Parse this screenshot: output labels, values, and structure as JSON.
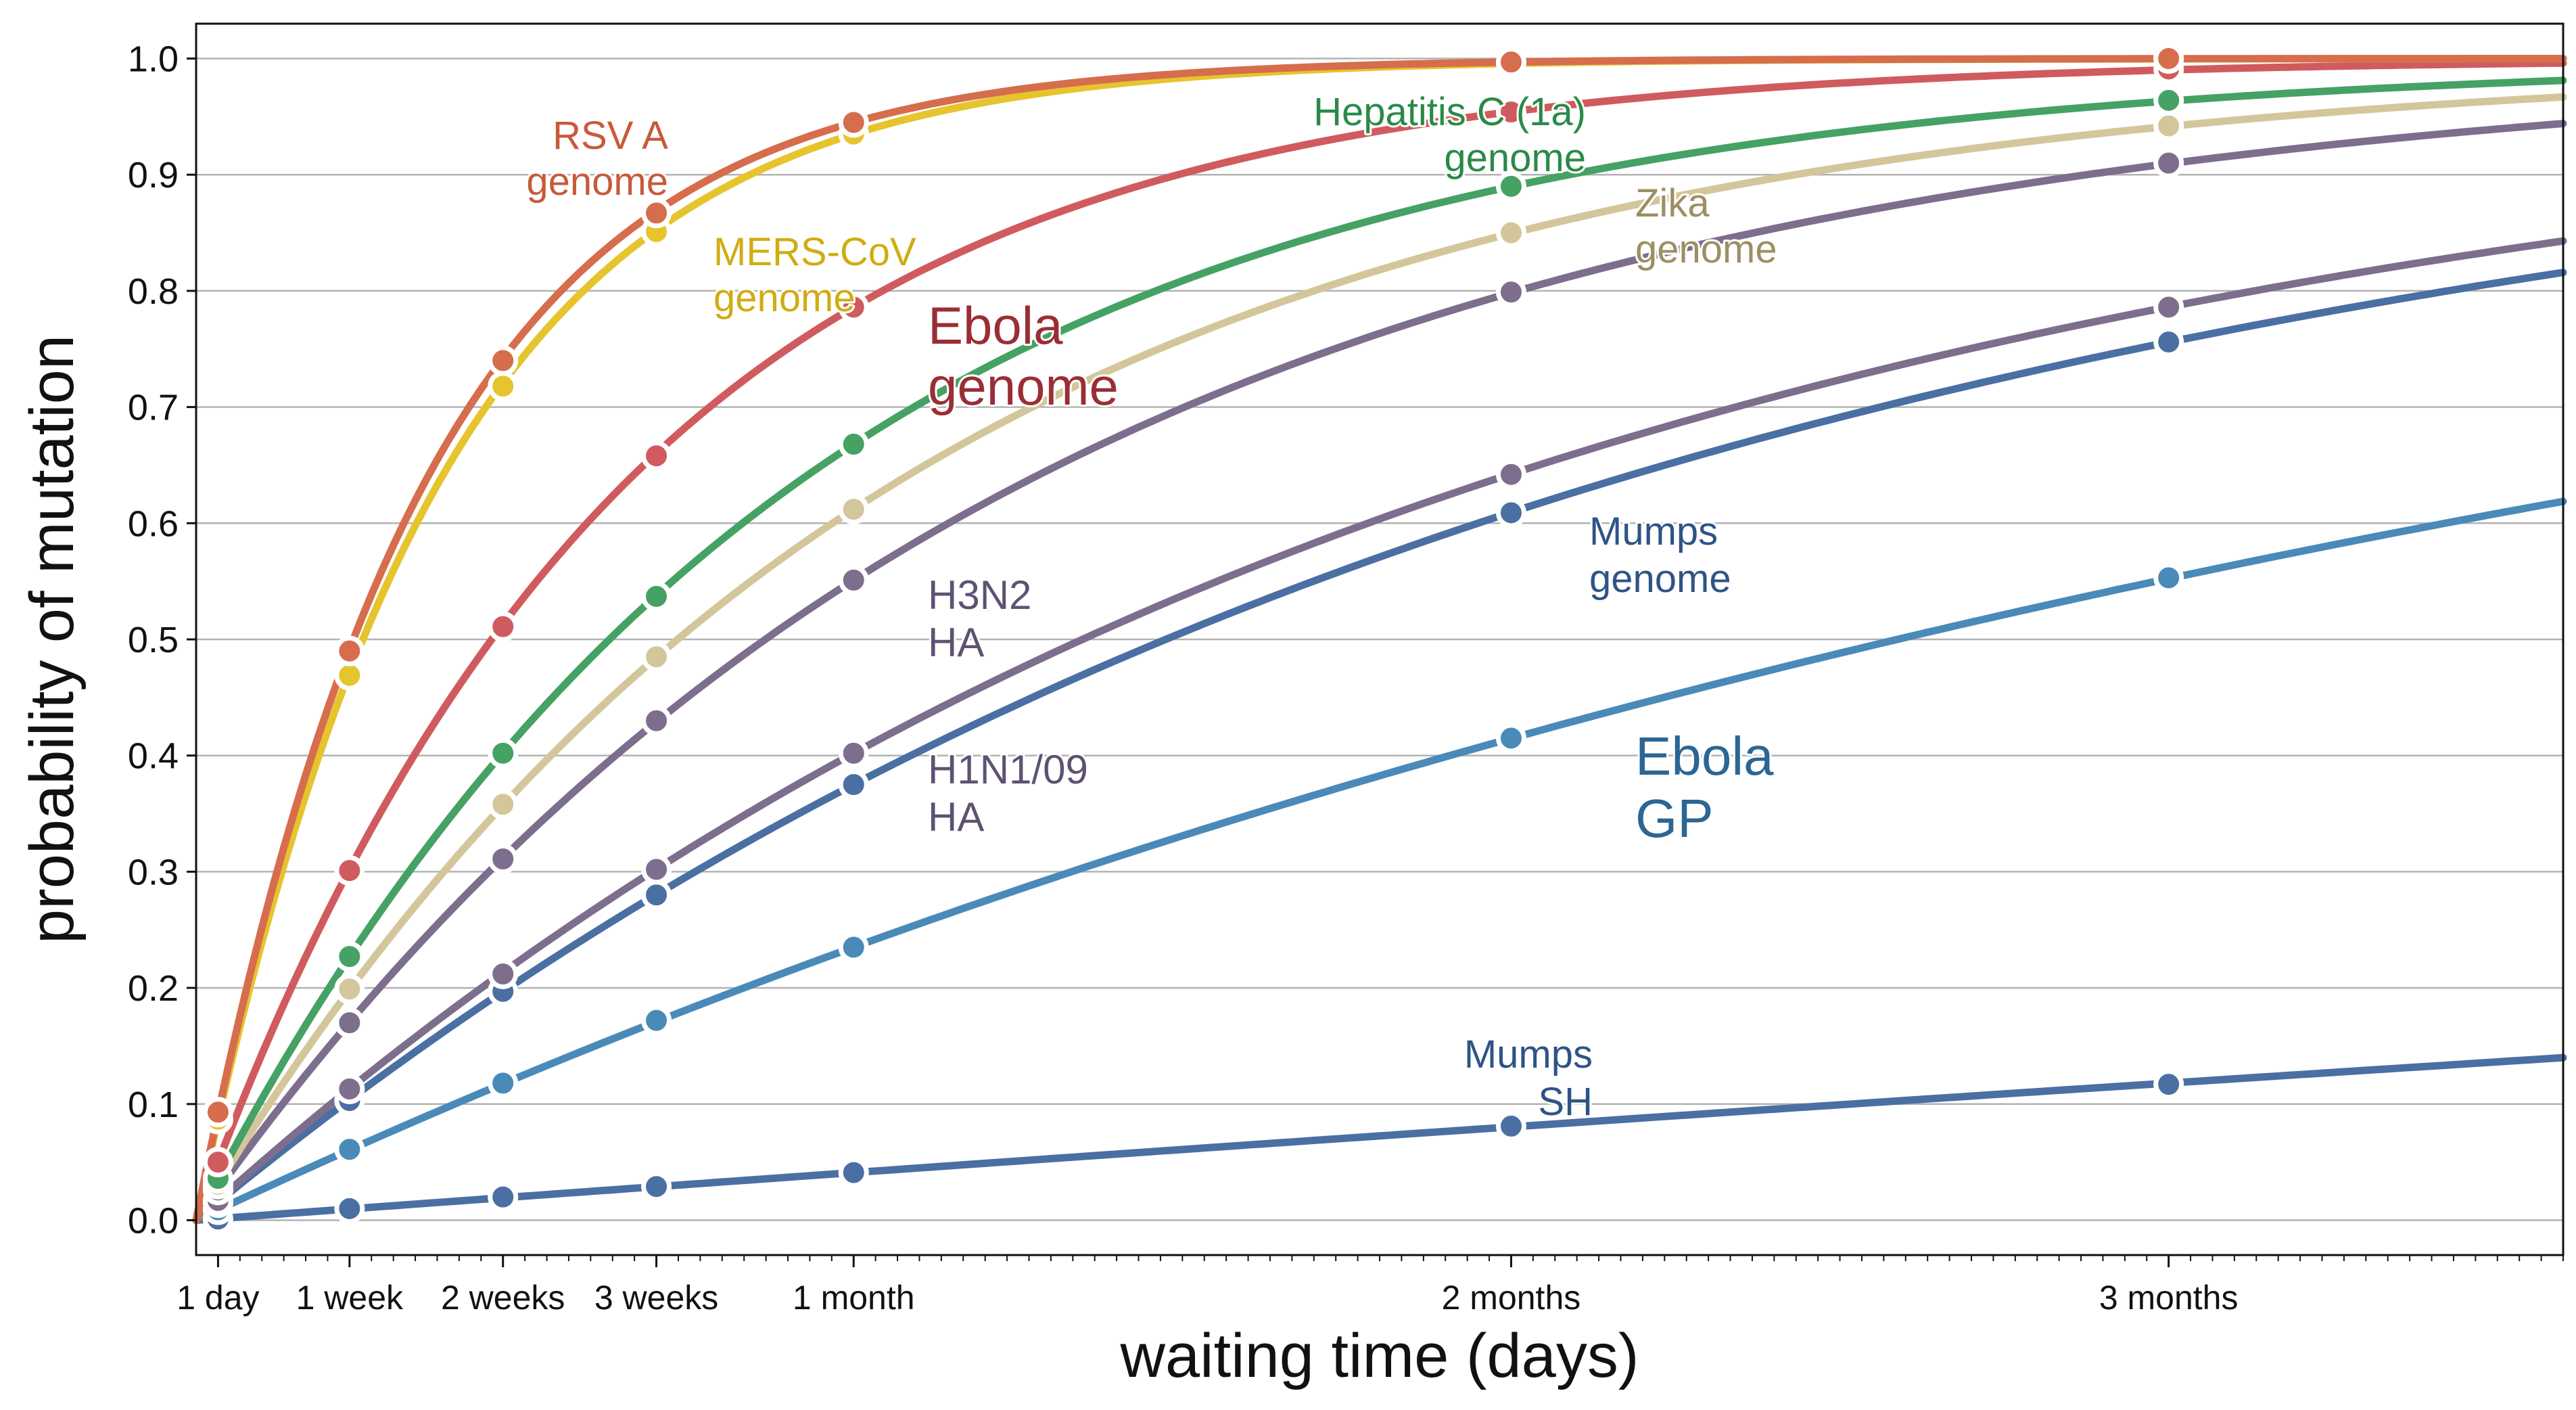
{
  "chart_data": {
    "type": "line",
    "title": "",
    "xlabel": "waiting time (days)",
    "ylabel": "probability of mutation",
    "xlim": [
      0,
      108
    ],
    "ylim": [
      -0.03,
      1.03
    ],
    "yticks": [
      0.0,
      0.1,
      0.2,
      0.3,
      0.4,
      0.5,
      0.6,
      0.7,
      0.8,
      0.9,
      1.0
    ],
    "ytick_labels": [
      "0.0",
      "0.1",
      "0.2",
      "0.3",
      "0.4",
      "0.5",
      "0.6",
      "0.7",
      "0.8",
      "0.9",
      "1.0"
    ],
    "xticks": [
      {
        "value": 1,
        "label": "1 day"
      },
      {
        "value": 7,
        "label": "1 week"
      },
      {
        "value": 14,
        "label": "2 weeks"
      },
      {
        "value": 21,
        "label": "3 weeks"
      },
      {
        "value": 30,
        "label": "1 month"
      },
      {
        "value": 60,
        "label": "2 months"
      },
      {
        "value": 90,
        "label": "3 months"
      }
    ],
    "grid": "horizontal",
    "point_x": [
      1,
      7,
      14,
      21,
      30,
      60,
      90
    ],
    "series": [
      {
        "name": "Mumps SH",
        "label_lines": [
          "Mumps",
          "SH"
        ],
        "color": "#4a6fa3",
        "label_color": "#2e5485",
        "values": [
          0.001,
          0.01,
          0.02,
          0.029,
          0.041,
          0.081,
          0.117
        ]
      },
      {
        "name": "Ebola GP",
        "label_lines": [
          "Ebola",
          "GP"
        ],
        "color": "#4a8ab8",
        "label_color": "#2b6694",
        "values": [
          0.009,
          0.061,
          0.118,
          0.172,
          0.235,
          0.415,
          0.553
        ]
      },
      {
        "name": "Mumps genome",
        "label_lines": [
          "Mumps",
          "genome"
        ],
        "color": "#4a6fa3",
        "label_color": "#2e5485",
        "values": [
          0.015,
          0.103,
          0.197,
          0.28,
          0.375,
          0.609,
          0.756
        ]
      },
      {
        "name": "H1N1/09 HA",
        "label_lines": [
          "H1N1/09",
          "HA"
        ],
        "color": "#7d6e8e",
        "label_color": "#5e5272",
        "values": [
          0.017,
          0.113,
          0.212,
          0.302,
          0.402,
          0.642,
          0.786
        ]
      },
      {
        "name": "H3N2 HA",
        "label_lines": [
          "H3N2",
          "HA"
        ],
        "color": "#7d6e8e",
        "label_color": "#5e5272",
        "values": [
          0.026,
          0.17,
          0.311,
          0.43,
          0.551,
          0.799,
          0.91
        ]
      },
      {
        "name": "Zika genome",
        "label_lines": [
          "Zika",
          "genome"
        ],
        "color": "#d4c69b",
        "label_color": "#9c8f63",
        "values": [
          0.031,
          0.199,
          0.358,
          0.485,
          0.612,
          0.85,
          0.942
        ]
      },
      {
        "name": "Hepatitis C (1a) genome",
        "label_lines": [
          "Hepatitis C (1a)",
          "genome"
        ],
        "color": "#45a264",
        "label_color": "#2a8a48",
        "values": [
          0.036,
          0.227,
          0.402,
          0.537,
          0.668,
          0.89,
          0.964
        ]
      },
      {
        "name": "Ebola genome",
        "label_lines": [
          "Ebola",
          "genome"
        ],
        "color": "#d05b5e",
        "label_color": "#9a2e35",
        "values": [
          0.05,
          0.301,
          0.511,
          0.658,
          0.786,
          0.954,
          0.991
        ]
      },
      {
        "name": "MERS-CoV genome",
        "label_lines": [
          "MERS-CoV",
          "genome"
        ],
        "color": "#e6c42e",
        "label_color": "#d1ac12",
        "values": [
          0.087,
          0.469,
          0.718,
          0.851,
          0.935,
          0.996,
          1.0
        ]
      },
      {
        "name": "RSV A genome",
        "label_lines": [
          "RSV A",
          "genome"
        ],
        "color": "#d66d4c",
        "label_color": "#c75a3a",
        "values": [
          0.093,
          0.49,
          0.74,
          0.867,
          0.945,
          0.997,
          1.0
        ]
      }
    ]
  }
}
